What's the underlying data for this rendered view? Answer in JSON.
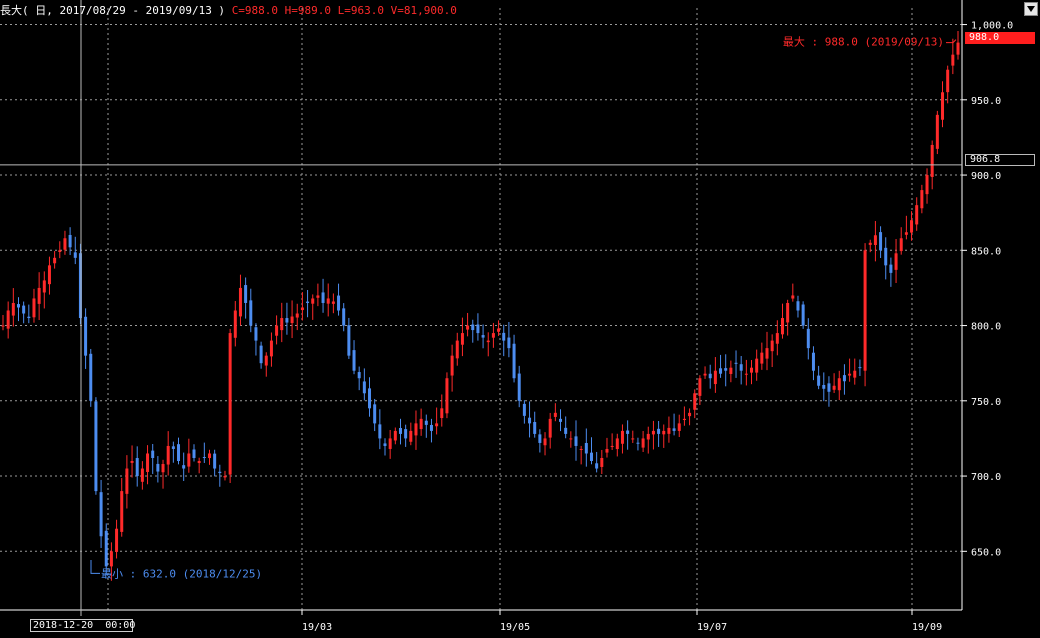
{
  "header": {
    "title": "長大(",
    "period": "日, 2017/08/29 - 2019/09/13 )",
    "ohlc": "C=988.0 H=989.0 L=963.0 V=81,900.0"
  },
  "cursor": {
    "date_label": "2018-12-20  00:00",
    "price_label": "906.8",
    "price": 906.8
  },
  "last_price_label": "988.0",
  "annotations": {
    "max_label": "最大 : 988.0 (2019/09/13)",
    "min_label": "最小 : 632.0 (2018/12/25)"
  },
  "colors": {
    "up": "#ff2a2a",
    "down": "#4d8df0",
    "grid": "#9a9a9a",
    "axis": "#ffffff"
  },
  "chart_data": {
    "type": "candlestick",
    "y_tick_labels": [
      "1,000.0",
      "950.0",
      "900.0",
      "850.0",
      "800.0",
      "750.0",
      "700.0",
      "650.0"
    ],
    "y_ticks": [
      1000,
      950,
      900,
      850,
      800,
      750,
      700,
      650
    ],
    "x_tick_labels": [
      "19/03",
      "19/05",
      "19/07",
      "19/09"
    ],
    "ylim": [
      611,
      1011
    ],
    "grid": true,
    "series_close_approx": [
      800,
      810,
      815,
      812,
      808,
      805,
      818,
      825,
      830,
      840,
      845,
      850,
      858,
      852,
      845,
      805,
      780,
      750,
      690,
      660,
      640,
      650,
      665,
      690,
      705,
      710,
      700,
      705,
      715,
      712,
      703,
      708,
      720,
      718,
      710,
      705,
      715,
      712,
      710,
      712,
      715,
      705,
      702,
      700,
      795,
      810,
      825,
      815,
      800,
      790,
      775,
      780,
      790,
      800,
      805,
      802,
      806,
      808,
      812,
      815,
      818,
      820,
      815,
      818,
      816,
      810,
      800,
      780,
      770,
      765,
      755,
      745,
      735,
      725,
      720,
      725,
      730,
      728,
      725,
      730,
      735,
      738,
      734,
      730,
      735,
      745,
      765,
      780,
      790,
      795,
      800,
      797,
      795,
      792,
      790,
      795,
      798,
      790,
      785,
      765,
      750,
      740,
      735,
      728,
      722,
      725,
      738,
      742,
      736,
      728,
      725,
      720,
      718,
      715,
      710,
      705,
      712,
      718,
      720,
      725,
      730,
      728,
      725,
      722,
      725,
      728,
      730,
      728,
      730,
      732,
      730,
      735,
      738,
      742,
      755,
      765,
      768,
      765,
      770,
      768,
      770,
      772,
      775,
      770,
      768,
      772,
      778,
      782,
      785,
      790,
      795,
      805,
      815,
      820,
      810,
      800,
      785,
      770,
      760,
      758,
      756,
      760,
      765,
      763,
      768,
      770,
      772,
      850,
      855,
      860,
      850,
      840,
      835,
      848,
      858,
      862,
      870,
      880,
      890,
      900,
      920,
      940,
      955,
      970,
      980,
      988
    ]
  }
}
